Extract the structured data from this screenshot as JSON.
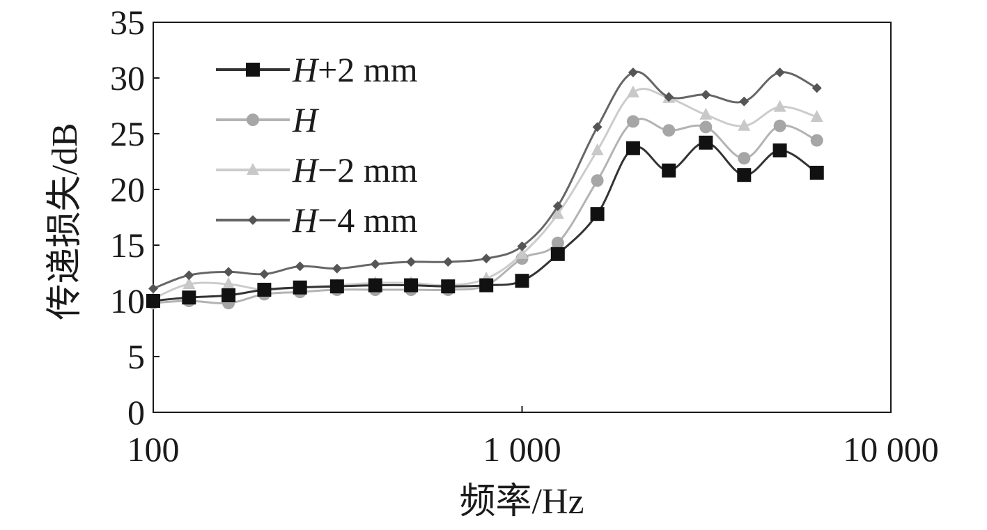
{
  "chart_data": {
    "type": "line",
    "xscale": "log",
    "xlim": [
      100,
      10000
    ],
    "ylim": [
      0,
      35
    ],
    "grid": false,
    "legend_position": "top-left",
    "xlabel": "频率/Hz",
    "ylabel": "传递损失/dB",
    "xtick_labels": [
      {
        "value": 100,
        "label": "100"
      },
      {
        "value": 1000,
        "label": "1 000"
      },
      {
        "value": 10000,
        "label": "10 000"
      }
    ],
    "ytick_labels": [
      {
        "value": 0,
        "label": "0"
      },
      {
        "value": 5,
        "label": "5"
      },
      {
        "value": 10,
        "label": "10"
      },
      {
        "value": 15,
        "label": "15"
      },
      {
        "value": 20,
        "label": "20"
      },
      {
        "value": 25,
        "label": "25"
      },
      {
        "value": 30,
        "label": "30"
      },
      {
        "value": 35,
        "label": "35"
      }
    ],
    "x": [
      100,
      125,
      160,
      200,
      250,
      315,
      400,
      500,
      630,
      800,
      1000,
      1250,
      1600,
      2000,
      2500,
      3150,
      4000,
      5000,
      6300
    ],
    "series": [
      {
        "name": "H+2 mm",
        "name_italic": "H",
        "name_rest": "+2 mm",
        "marker": "square",
        "color": "#111111",
        "line_color": "#333333",
        "values": [
          10.0,
          10.3,
          10.5,
          11.0,
          11.2,
          11.3,
          11.4,
          11.4,
          11.3,
          11.4,
          11.8,
          14.2,
          17.8,
          23.7,
          21.7,
          24.2,
          21.3,
          23.5,
          21.5
        ]
      },
      {
        "name": "H",
        "name_italic": "H",
        "name_rest": "",
        "marker": "circle",
        "color": "#a6a6a6",
        "line_color": "#b3b3b3",
        "values": [
          9.8,
          10.0,
          9.8,
          10.6,
          10.8,
          11.0,
          11.0,
          11.0,
          11.0,
          11.4,
          13.8,
          15.2,
          20.8,
          26.1,
          25.3,
          25.6,
          22.8,
          25.7,
          24.4
        ]
      },
      {
        "name": "H−2 mm",
        "name_italic": "H",
        "name_rest": "−2 mm",
        "marker": "triangle",
        "color": "#c8c8c8",
        "line_color": "#cccccc",
        "values": [
          10.2,
          11.5,
          11.5,
          11.0,
          11.2,
          11.4,
          11.6,
          11.6,
          11.4,
          12.0,
          14.2,
          17.8,
          23.5,
          28.7,
          28.2,
          26.7,
          25.7,
          27.4,
          26.5
        ]
      },
      {
        "name": "H−4 mm",
        "name_italic": "H",
        "name_rest": "−4 mm",
        "marker": "diamond",
        "color": "#555555",
        "line_color": "#666666",
        "values": [
          11.1,
          12.3,
          12.6,
          12.4,
          13.1,
          12.9,
          13.3,
          13.5,
          13.5,
          13.8,
          14.9,
          18.5,
          25.6,
          30.5,
          28.3,
          28.5,
          27.9,
          30.5,
          29.1
        ]
      }
    ]
  }
}
